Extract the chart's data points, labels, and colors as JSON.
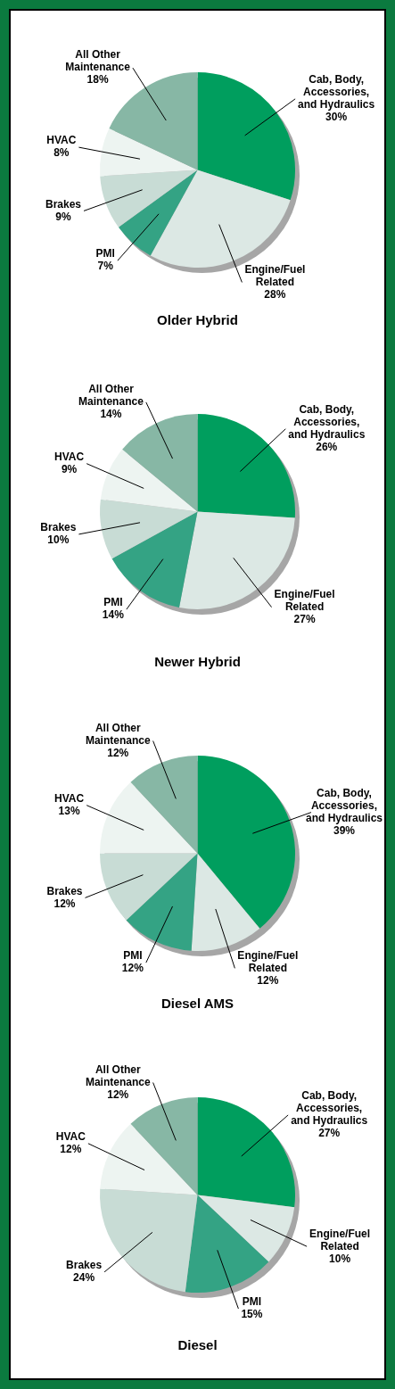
{
  "chart_data": [
    {
      "type": "pie",
      "title": "Older Hybrid",
      "categories": [
        "Cab, Body, Accessories, and Hydraulics",
        "Engine/Fuel Related",
        "PMI",
        "Brakes",
        "HVAC",
        "All Other Maintenance"
      ],
      "values": [
        30,
        28,
        7,
        9,
        8,
        18
      ],
      "value_labels": [
        "30%",
        "28%",
        "7%",
        "9%",
        "8%",
        "18%"
      ],
      "colors": [
        "#009e5e",
        "#dce8e4",
        "#34a384",
        "#c8dcd5",
        "#edf4f1",
        "#87b7a5"
      ]
    },
    {
      "type": "pie",
      "title": "Newer Hybrid",
      "categories": [
        "Cab, Body, Accessories, and Hydraulics",
        "Engine/Fuel Related",
        "PMI",
        "Brakes",
        "HVAC",
        "All Other Maintenance"
      ],
      "values": [
        26,
        27,
        14,
        10,
        9,
        14
      ],
      "value_labels": [
        "26%",
        "27%",
        "14%",
        "10%",
        "9%",
        "14%"
      ],
      "colors": [
        "#009e5e",
        "#dce8e4",
        "#34a384",
        "#c8dcd5",
        "#edf4f1",
        "#87b7a5"
      ]
    },
    {
      "type": "pie",
      "title": "Diesel AMS",
      "categories": [
        "Cab, Body, Accessories, and Hydraulics",
        "Engine/Fuel Related",
        "PMI",
        "Brakes",
        "HVAC",
        "All Other Maintenance"
      ],
      "values": [
        39,
        12,
        12,
        12,
        13,
        12
      ],
      "value_labels": [
        "39%",
        "12%",
        "12%",
        "12%",
        "13%",
        "12%"
      ],
      "colors": [
        "#009e5e",
        "#dce8e4",
        "#34a384",
        "#c8dcd5",
        "#edf4f1",
        "#87b7a5"
      ]
    },
    {
      "type": "pie",
      "title": "Diesel",
      "categories": [
        "Cab, Body, Accessories, and Hydraulics",
        "Engine/Fuel Related",
        "PMI",
        "Brakes",
        "HVAC",
        "All Other Maintenance"
      ],
      "values": [
        27,
        10,
        15,
        24,
        12,
        12
      ],
      "value_labels": [
        "27%",
        "10%",
        "15%",
        "24%",
        "12%",
        "12%"
      ],
      "colors": [
        "#009e5e",
        "#dce8e4",
        "#34a384",
        "#c8dcd5",
        "#edf4f1",
        "#87b7a5"
      ]
    }
  ]
}
